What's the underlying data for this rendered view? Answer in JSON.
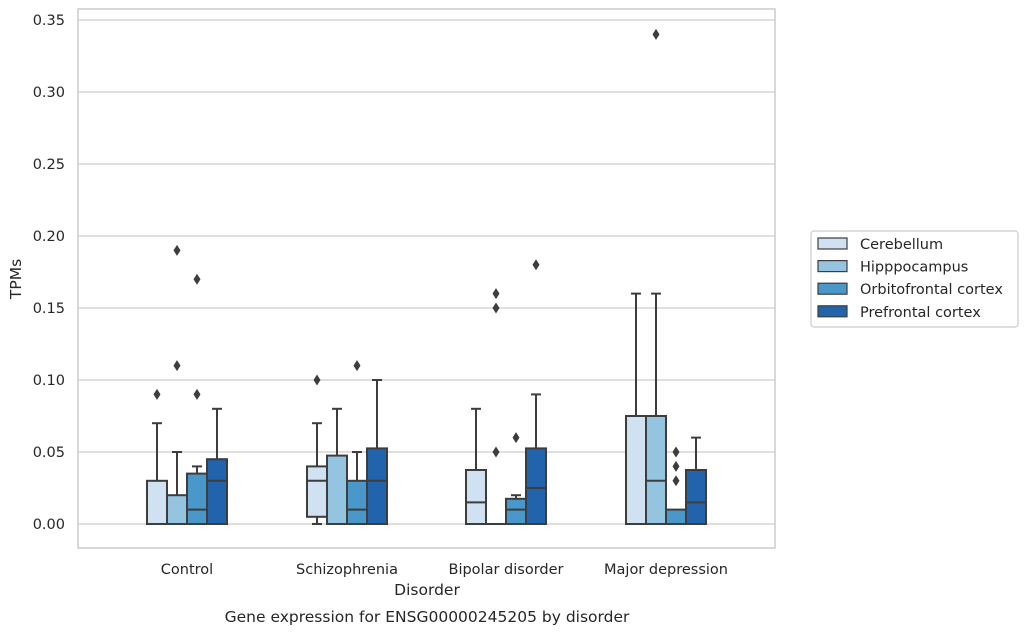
{
  "chart_data": {
    "type": "box",
    "title": "Gene expression for ENSG00000245205 by disorder",
    "xlabel": "Disorder",
    "ylabel": "TPMs",
    "ylim": [
      -0.017,
      0.357
    ],
    "yticks": [
      "0.00",
      "0.05",
      "0.10",
      "0.15",
      "0.20",
      "0.25",
      "0.30",
      "0.35"
    ],
    "categories": [
      "Control",
      "Schizophrenia",
      "Bipolar disorder",
      "Major depression"
    ],
    "grid": true,
    "legend_position": "right",
    "series": [
      {
        "name": "Cerebellum",
        "color": "#d0e1f2",
        "boxes": [
          {
            "whislo": 0.0,
            "q1": 0.0,
            "med": 0.0,
            "q3": 0.03,
            "whishi": 0.07,
            "fliers": [
              0.09
            ]
          },
          {
            "whislo": 0.0,
            "q1": 0.005,
            "med": 0.03,
            "q3": 0.04,
            "whishi": 0.07,
            "fliers": [
              0.1
            ]
          },
          {
            "whislo": 0.0,
            "q1": 0.0,
            "med": 0.015,
            "q3": 0.0375,
            "whishi": 0.08,
            "fliers": []
          },
          {
            "whislo": 0.0,
            "q1": 0.0,
            "med": 0.0,
            "q3": 0.075,
            "whishi": 0.16,
            "fliers": []
          }
        ]
      },
      {
        "name": "Hipppocampus",
        "color": "#94c4df",
        "boxes": [
          {
            "whislo": 0.0,
            "q1": 0.0,
            "med": 0.0,
            "q3": 0.02,
            "whishi": 0.05,
            "fliers": [
              0.11,
              0.19
            ]
          },
          {
            "whislo": 0.0,
            "q1": 0.0,
            "med": 0.0,
            "q3": 0.0475,
            "whishi": 0.08,
            "fliers": []
          },
          {
            "whislo": 0.0,
            "q1": 0.0,
            "med": 0.0,
            "q3": 0.0,
            "whishi": 0.0,
            "fliers": [
              0.05,
              0.15,
              0.16
            ]
          },
          {
            "whislo": 0.0,
            "q1": 0.0,
            "med": 0.03,
            "q3": 0.075,
            "whishi": 0.16,
            "fliers": [
              0.34
            ]
          }
        ]
      },
      {
        "name": "Orbitofrontal cortex",
        "color": "#4a98c9",
        "boxes": [
          {
            "whislo": 0.0,
            "q1": 0.0,
            "med": 0.01,
            "q3": 0.035,
            "whishi": 0.04,
            "fliers": [
              0.09,
              0.17
            ]
          },
          {
            "whislo": 0.0,
            "q1": 0.0,
            "med": 0.01,
            "q3": 0.03,
            "whishi": 0.05,
            "fliers": [
              0.11
            ]
          },
          {
            "whislo": 0.0,
            "q1": 0.0,
            "med": 0.01,
            "q3": 0.0175,
            "whishi": 0.02,
            "fliers": [
              0.06
            ]
          },
          {
            "whislo": 0.0,
            "q1": 0.0,
            "med": 0.0,
            "q3": 0.01,
            "whishi": 0.01,
            "fliers": [
              0.03,
              0.04,
              0.05
            ]
          }
        ]
      },
      {
        "name": "Prefrontal cortex",
        "color": "#2164ab",
        "boxes": [
          {
            "whislo": 0.0,
            "q1": 0.0,
            "med": 0.03,
            "q3": 0.045,
            "whishi": 0.08,
            "fliers": []
          },
          {
            "whislo": 0.0,
            "q1": 0.0,
            "med": 0.03,
            "q3": 0.0525,
            "whishi": 0.1,
            "fliers": []
          },
          {
            "whislo": 0.0,
            "q1": 0.0,
            "med": 0.025,
            "q3": 0.0525,
            "whishi": 0.09,
            "fliers": [
              0.18
            ]
          },
          {
            "whislo": 0.0,
            "q1": 0.0,
            "med": 0.015,
            "q3": 0.0375,
            "whishi": 0.06,
            "fliers": []
          }
        ]
      }
    ]
  }
}
